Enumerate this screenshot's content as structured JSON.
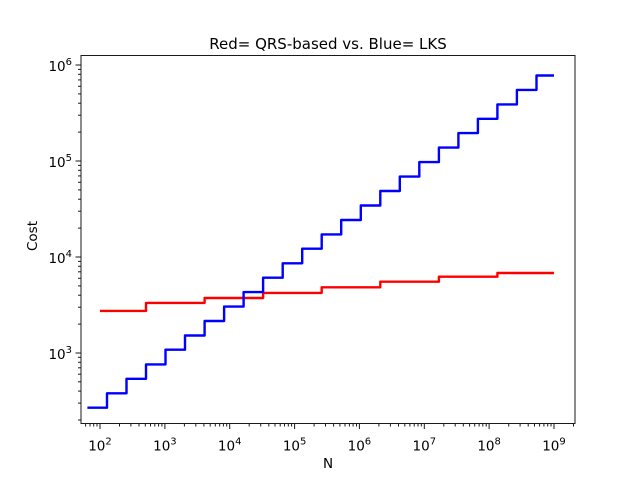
{
  "chart_data": {
    "type": "line",
    "subtype": "step-post",
    "title": "Red= QRS-based vs. Blue= LKS",
    "xlabel": "N",
    "ylabel": "Cost",
    "x_scale": "log10",
    "y_scale": "log10",
    "x_range_log10": [
      1.707,
      9.324
    ],
    "y_range_log10": [
      2.265,
      6.099
    ],
    "x_major_tick_exponents": [
      2,
      3,
      4,
      5,
      6,
      7,
      8,
      9
    ],
    "y_major_tick_exponents": [
      3,
      4,
      5,
      6
    ],
    "tick_label_base": "10",
    "minor_ticks": true,
    "grid": false,
    "legend_position": "none",
    "frame_color": "#1a1a1a",
    "series": [
      {
        "name": "QRS-based",
        "color": "#ff0000",
        "draw_order": 1,
        "end_n": 1000000000,
        "steps": [
          [
            100,
            2740
          ],
          [
            512,
            3320
          ],
          [
            4096,
            3740
          ],
          [
            32768,
            4220
          ],
          [
            262144,
            4830
          ],
          [
            2097152,
            5520
          ],
          [
            16777216,
            6230
          ],
          [
            134217728,
            6800
          ]
        ]
      },
      {
        "name": "LKS",
        "color": "#0000ff",
        "draw_order": 2,
        "end_n": 1000000000,
        "steps": [
          [
            64,
            269
          ],
          [
            128,
            380
          ],
          [
            256,
            538
          ],
          [
            512,
            760
          ],
          [
            1024,
            1080
          ],
          [
            2048,
            1520
          ],
          [
            4096,
            2150
          ],
          [
            8192,
            3040
          ],
          [
            16384,
            4300
          ],
          [
            32768,
            6080
          ],
          [
            65536,
            8600
          ],
          [
            131072,
            12200
          ],
          [
            262144,
            17200
          ],
          [
            524288,
            24300
          ],
          [
            1048576,
            34400
          ],
          [
            2097152,
            48700
          ],
          [
            4194304,
            68800
          ],
          [
            8388608,
            97300
          ],
          [
            16777216,
            138000
          ],
          [
            33554432,
            195000
          ],
          [
            67108864,
            275000
          ],
          [
            134217728,
            389000
          ],
          [
            268435456,
            550000
          ],
          [
            536870912,
            778000
          ]
        ]
      }
    ]
  }
}
